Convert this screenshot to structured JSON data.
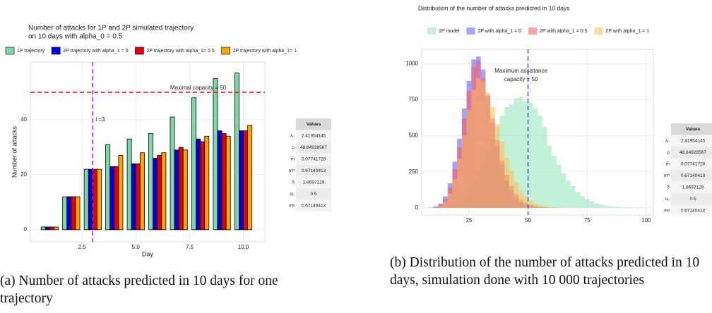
{
  "chart_data": [
    {
      "type": "bar",
      "title": [
        "Number of attacks for 1P and 2P simulated trajectory",
        " on 10 days with alpha_0 = 0.5"
      ],
      "x_label": "Day",
      "y_label": "Number of attacks",
      "x": [
        1,
        2,
        3,
        4,
        5,
        6,
        7,
        8,
        9,
        10
      ],
      "series": [
        {
          "name": "1P trajectory",
          "color": "#7fd6a6",
          "values": [
            1,
            12,
            22,
            31,
            33,
            35,
            41,
            48,
            55,
            57
          ]
        },
        {
          "name": "2P trajectory with alpha_1 = 0",
          "color": "#0000dd",
          "values": [
            1,
            12,
            22,
            23,
            24,
            26,
            29,
            33,
            36,
            36
          ]
        },
        {
          "name": "2P trajectory with alpha_1= 0.5",
          "color": "#e00000",
          "values": [
            1,
            12,
            22,
            23,
            24,
            27,
            30,
            32,
            35,
            36
          ]
        },
        {
          "name": "2P trajectory with alpha_1= 1",
          "color": "#ffa500",
          "values": [
            1,
            12,
            22,
            27,
            28,
            28,
            29,
            34,
            34,
            38
          ]
        }
      ],
      "xlim": [
        0.1,
        11
      ],
      "xticks": [
        2.5,
        {
          "value": 5,
          "label": "5.0"
        },
        7.5,
        {
          "value": 10,
          "label": "10.0"
        }
      ],
      "ylim": [
        -4.4,
        61
      ],
      "yticks": [
        0,
        20,
        40
      ],
      "grid": true,
      "hline": {
        "value": 50,
        "label": "Maximal capacity = 50",
        "color": "#ff0000"
      },
      "vline": {
        "value": 3,
        "label": "l =3",
        "color": "#a020f0"
      },
      "table": {
        "header": "Values",
        "rows": [
          [
            "λ₀",
            "2.41954145"
          ],
          [
            "ρ",
            "48.84928567"
          ],
          [
            "m̅",
            "0.07741728"
          ],
          [
            "mᴴ",
            "0.67140413"
          ],
          [
            "δ",
            "1.8697129"
          ],
          [
            "α₀",
            "0.5"
          ],
          [
            "mᵍ",
            "0.67140413"
          ]
        ]
      },
      "caption": "(a) Number of attacks predicted in 10 days for one trajectory"
    },
    {
      "type": "histogram",
      "title": [
        "Distribution of the number of attacks predicted in 10 days"
      ],
      "bins": [
        8,
        10,
        12,
        14,
        16,
        18,
        20,
        22,
        24,
        26,
        28,
        30,
        32,
        34,
        36,
        38,
        40,
        42,
        44,
        46,
        48,
        50,
        52,
        54,
        56,
        58,
        60,
        62,
        64,
        66,
        68,
        70,
        72,
        74,
        76,
        78,
        80,
        82,
        84,
        86,
        88,
        90,
        92,
        94,
        96,
        98,
        100
      ],
      "series": [
        {
          "name": "1P model",
          "color": "#8fe6b8",
          "values": [
            0,
            0,
            2,
            5,
            15,
            30,
            60,
            95,
            140,
            190,
            250,
            320,
            400,
            480,
            560,
            640,
            700,
            720,
            760,
            770,
            740,
            730,
            690,
            640,
            560,
            430,
            360,
            300,
            240,
            190,
            150,
            110,
            80,
            60,
            45,
            30,
            22,
            15,
            10,
            7,
            5,
            3,
            2,
            1,
            1,
            0
          ]
        },
        {
          "name": "2P with alpha_1 = 0",
          "color": "#5555ff",
          "values": [
            2,
            10,
            30,
            80,
            170,
            320,
            480,
            690,
            880,
            1030,
            1050,
            960,
            780,
            590,
            430,
            300,
            190,
            120,
            70,
            40,
            20,
            12,
            6,
            3,
            2,
            1,
            0,
            0,
            0,
            0,
            0,
            0,
            0,
            0,
            0,
            0,
            0,
            0,
            0,
            0,
            0,
            0,
            0,
            0,
            0,
            0
          ]
        },
        {
          "name": "2P with alpha_1 = 0.5",
          "color": "#ff5555",
          "values": [
            1,
            6,
            20,
            60,
            140,
            270,
            420,
            620,
            810,
            980,
            1020,
            900,
            780,
            620,
            470,
            330,
            230,
            150,
            95,
            60,
            35,
            20,
            12,
            7,
            4,
            2,
            1,
            0,
            0,
            0,
            0,
            0,
            0,
            0,
            0,
            0,
            0,
            0,
            0,
            0,
            0,
            0,
            0,
            0,
            0,
            0
          ]
        },
        {
          "name": "2P with alpha_1 = 1",
          "color": "#ffbb55",
          "values": [
            0,
            3,
            12,
            40,
            100,
            200,
            340,
            500,
            680,
            820,
            900,
            880,
            800,
            700,
            580,
            460,
            350,
            260,
            180,
            120,
            80,
            50,
            30,
            18,
            10,
            6,
            3,
            2,
            1,
            0,
            0,
            0,
            0,
            0,
            0,
            0,
            0,
            0,
            0,
            0,
            0,
            0,
            0,
            0,
            0,
            0
          ]
        }
      ],
      "xlim": [
        5,
        103
      ],
      "xticks": [
        25,
        50,
        75,
        100
      ],
      "ylim": [
        -50,
        1100
      ],
      "yticks": [
        0,
        250,
        500,
        750,
        1000
      ],
      "grid": true,
      "vline": {
        "value": 50,
        "label": [
          "Maximum assistance",
          "capacity = 50"
        ],
        "color": "#0000ff"
      },
      "table": {
        "header": "Values",
        "rows": [
          [
            "λ₀",
            "2.41954145"
          ],
          [
            "ρ",
            "48.84928567"
          ],
          [
            "m̅",
            "0.07741728"
          ],
          [
            "mᴴ",
            "0.67140413"
          ],
          [
            "δ",
            "1.8697129"
          ],
          [
            "α₀",
            "0.5"
          ],
          [
            "mᵍ",
            "0.67140413"
          ]
        ]
      },
      "caption": "(b) Distribution of the number of attacks predicted in 10 days, simulation done with 10 000 trajectories"
    }
  ]
}
